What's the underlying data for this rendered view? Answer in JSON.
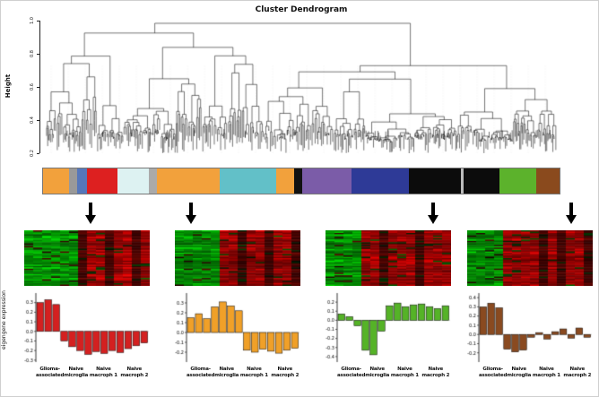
{
  "dendrogram": {
    "title": "Cluster Dendrogram",
    "ylabel": "Height",
    "yticks": [
      "1.0",
      "0.8",
      "0.6",
      "0.4",
      "0.2"
    ]
  },
  "colorbar": {
    "segments": [
      {
        "color": "#f2a13c",
        "weight": 5
      },
      {
        "color": "#999999",
        "weight": 1.6
      },
      {
        "color": "#5577bb",
        "weight": 1.8
      },
      {
        "color": "#dd2020",
        "weight": 6
      },
      {
        "color": "#ddf2f2",
        "weight": 6
      },
      {
        "color": "#aaaaaa",
        "weight": 1.6
      },
      {
        "color": "#f2a13c",
        "weight": 12
      },
      {
        "color": "#62c0c8",
        "weight": 11
      },
      {
        "color": "#f2a13c",
        "weight": 3.5
      },
      {
        "color": "#111111",
        "weight": 1.5
      },
      {
        "color": "#7b5ca8",
        "weight": 9.5
      },
      {
        "color": "#2e3a97",
        "weight": 11
      },
      {
        "color": "#0c0c0c",
        "weight": 10
      },
      {
        "color": "#bbbbbb",
        "weight": 0.6
      },
      {
        "color": "#0c0c0c",
        "weight": 7
      },
      {
        "color": "#5cb22c",
        "weight": 7
      },
      {
        "color": "#8a4a1d",
        "weight": 4.5
      }
    ]
  },
  "eigengene_axis_label": "eigengene expression",
  "sample_groups": [
    {
      "line1": "Glioma-",
      "line2": "associated",
      "size": 3
    },
    {
      "line1": "Naive",
      "line2": "microglia",
      "size": 3
    },
    {
      "line1": "Naive",
      "line2": "macroph 1",
      "size": 4
    },
    {
      "line1": "Naive",
      "line2": "macroph 2",
      "size": 4
    }
  ],
  "heatmaps": [
    {
      "module": "red",
      "palette": {
        "G": "green",
        "R": "red",
        "D": "dark-red"
      },
      "columns": [
        "G",
        "G",
        "G",
        "G",
        "G",
        "G",
        "D",
        "R",
        "R",
        "D",
        "R",
        "R",
        "D",
        "R"
      ]
    },
    {
      "module": "orange",
      "palette": {
        "G": "green",
        "R": "red",
        "D": "dark-red"
      },
      "columns": [
        "G",
        "G",
        "G",
        "G",
        "G",
        "R",
        "R",
        "D",
        "R",
        "R",
        "D",
        "R",
        "R",
        "D"
      ]
    },
    {
      "module": "green",
      "palette": {
        "G": "green",
        "R": "red",
        "D": "dark-red"
      },
      "columns": [
        "G",
        "G",
        "G",
        "G",
        "R",
        "R",
        "D",
        "R",
        "R",
        "R",
        "D",
        "R",
        "R",
        "R"
      ]
    },
    {
      "module": "brown",
      "palette": {
        "G": "green",
        "R": "red",
        "D": "dark-red"
      },
      "columns": [
        "G",
        "G",
        "G",
        "G",
        "R",
        "R",
        "R",
        "R",
        "D",
        "R",
        "D",
        "R",
        "R",
        "D"
      ]
    }
  ],
  "chart_data": [
    {
      "type": "bar",
      "module": "red",
      "color": "#d42020",
      "ylabel": "eigengene expression",
      "group_labels": [
        "Glioma-associated",
        "Naive microglia",
        "Naive macroph 1",
        "Naive macroph 2"
      ],
      "group_sizes": [
        3,
        3,
        4,
        4
      ],
      "values": [
        0.3,
        0.33,
        0.28,
        -0.1,
        -0.16,
        -0.2,
        -0.24,
        -0.21,
        -0.23,
        -0.2,
        -0.22,
        -0.18,
        -0.15,
        -0.12
      ],
      "ylim": [
        -0.32,
        0.4
      ],
      "yticks": [
        -0.3,
        -0.2,
        -0.1,
        0,
        0.1,
        0.2,
        0.3
      ]
    },
    {
      "type": "bar",
      "module": "orange",
      "color": "#f0a028",
      "ylabel": "eigengene expression",
      "group_labels": [
        "Glioma-associated",
        "Naive microglia",
        "Naive macroph 1",
        "Naive macroph 2"
      ],
      "group_sizes": [
        3,
        3,
        4,
        4
      ],
      "values": [
        0.15,
        0.19,
        0.14,
        0.26,
        0.31,
        0.27,
        0.22,
        -0.18,
        -0.2,
        -0.17,
        -0.19,
        -0.21,
        -0.18,
        -0.16
      ],
      "ylim": [
        -0.3,
        0.4
      ],
      "yticks": [
        -0.2,
        -0.1,
        0,
        0.1,
        0.2,
        0.3
      ]
    },
    {
      "type": "bar",
      "module": "green",
      "color": "#55b327",
      "ylabel": "eigengene expression",
      "group_labels": [
        "Glioma-associated",
        "Naive microglia",
        "Naive macroph 1",
        "Naive macroph 2"
      ],
      "group_sizes": [
        3,
        3,
        4,
        4
      ],
      "values": [
        0.07,
        0.04,
        -0.06,
        -0.33,
        -0.38,
        -0.12,
        0.16,
        0.19,
        0.15,
        0.17,
        0.18,
        0.15,
        0.13,
        0.16
      ],
      "ylim": [
        -0.46,
        0.3
      ],
      "yticks": [
        -0.4,
        -0.3,
        -0.2,
        -0.1,
        0,
        0.1,
        0.2
      ]
    },
    {
      "type": "bar",
      "module": "brown",
      "color": "#8a4a20",
      "ylabel": "eigengene expression",
      "group_labels": [
        "Glioma-associated",
        "Naive microglia",
        "Naive macroph 1",
        "Naive macroph 2"
      ],
      "group_sizes": [
        3,
        3,
        4,
        4
      ],
      "values": [
        0.3,
        0.34,
        0.29,
        -0.16,
        -0.19,
        -0.17,
        -0.03,
        0.02,
        -0.05,
        0.03,
        0.06,
        -0.04,
        0.07,
        -0.03
      ],
      "ylim": [
        -0.3,
        0.45
      ],
      "yticks": [
        -0.2,
        -0.1,
        0,
        0.1,
        0.2,
        0.3,
        0.4
      ]
    }
  ]
}
